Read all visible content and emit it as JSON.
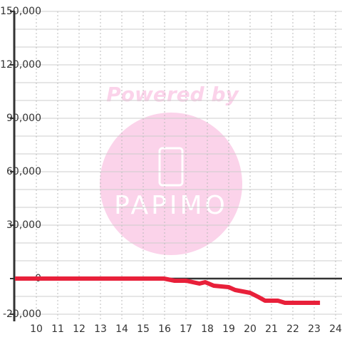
{
  "chart_data": {
    "type": "line",
    "watermark": {
      "top": "Powered by",
      "logo": "PAPIMO"
    },
    "x": [
      9,
      15.97,
      16.47,
      17.0,
      17.63,
      17.9,
      18.3,
      19.0,
      19.3,
      20.0,
      20.4,
      20.7,
      21.3,
      21.63,
      23.27
    ],
    "series": [
      {
        "color": "#e8203a",
        "values": [
          0,
          0,
          -1200,
          -1200,
          -2800,
          -2000,
          -4000,
          -4800,
          -6400,
          -8000,
          -10400,
          -12400,
          -12400,
          -13600,
          -13600
        ]
      }
    ],
    "xlim": [
      9,
      24.3
    ],
    "xticks": [
      10,
      11,
      12,
      13,
      14,
      15,
      16,
      17,
      18,
      19,
      20,
      21,
      22,
      23,
      24
    ],
    "ylim": [
      -24000,
      150000
    ],
    "yticks": [
      {
        "value": 150000,
        "label": "150,000"
      },
      {
        "value": 120000,
        "label": "120,000"
      },
      {
        "value": 90000,
        "label": "90,000"
      },
      {
        "value": 60000,
        "label": "60,000"
      },
      {
        "value": 30000,
        "label": "30,000"
      },
      0,
      {
        "value": -20000,
        "label": "-20,000"
      }
    ],
    "minor_yticks": [
      140000,
      130000,
      110000,
      100000,
      80000,
      70000,
      50000,
      40000,
      20000,
      10000,
      -10000
    ],
    "grid": true
  }
}
